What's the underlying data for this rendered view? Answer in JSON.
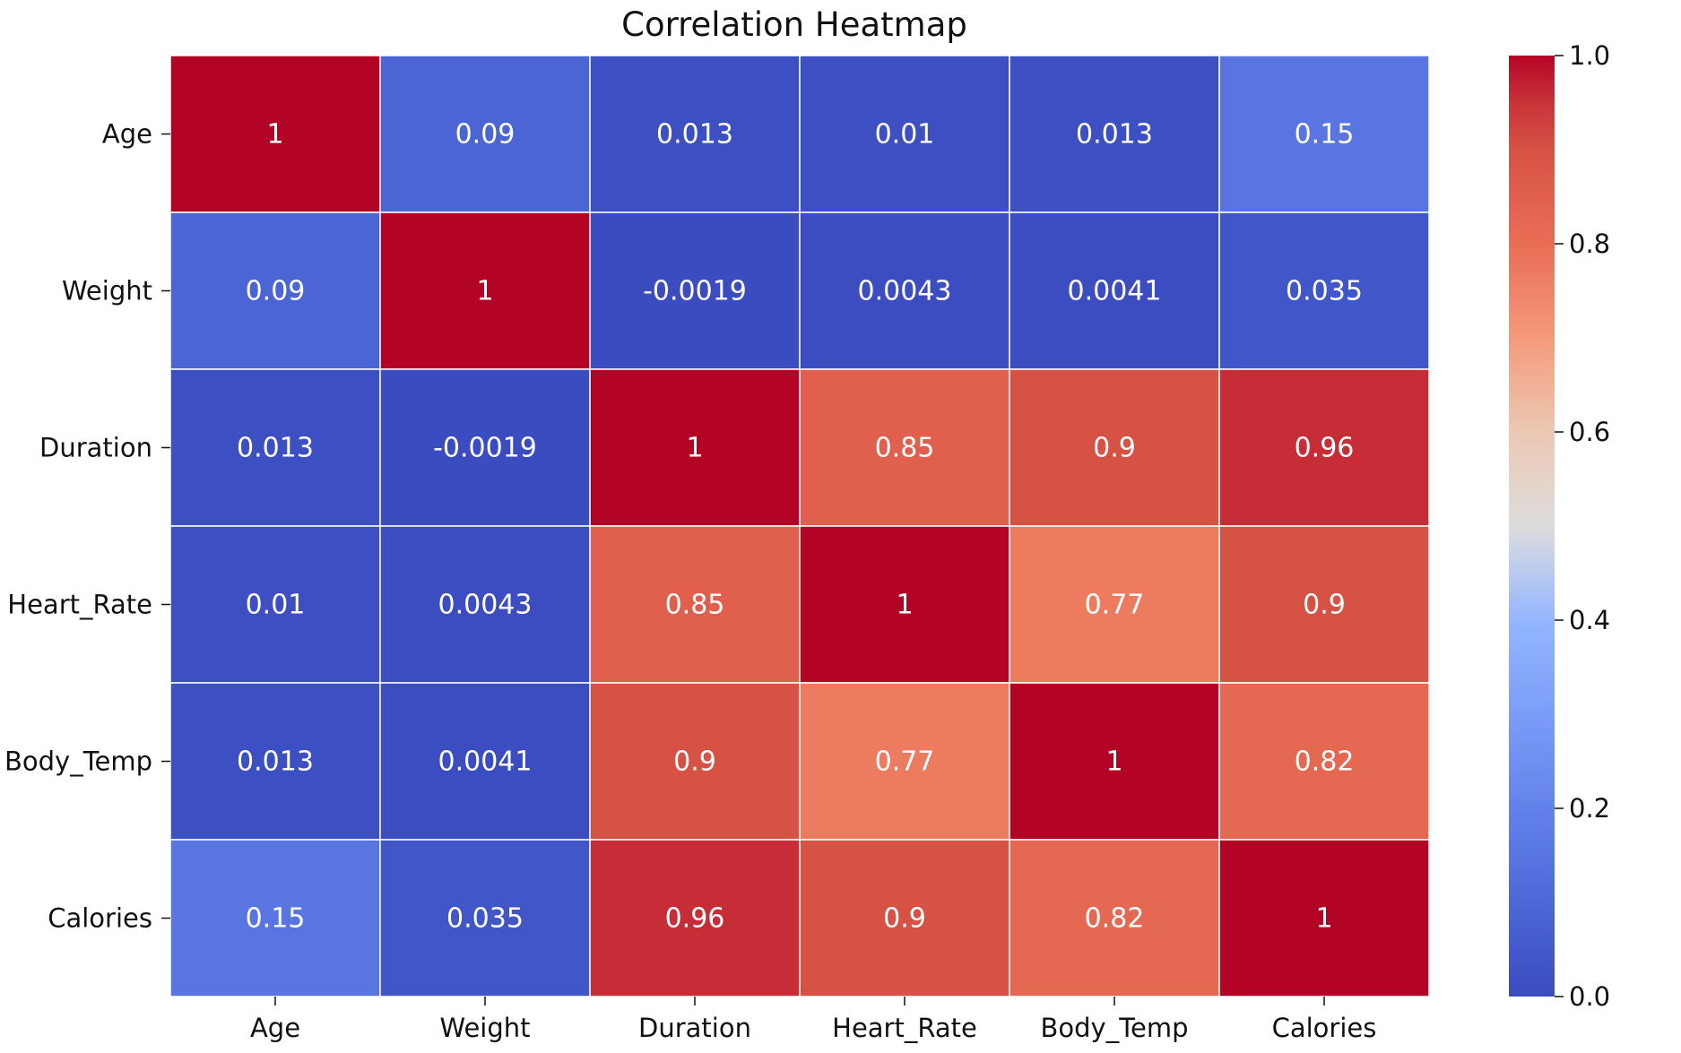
{
  "chart_data": {
    "type": "heatmap",
    "title": "Correlation Heatmap",
    "xlabel": "",
    "ylabel": "",
    "x_labels": [
      "Age",
      "Weight",
      "Duration",
      "Heart_Rate",
      "Body_Temp",
      "Calories"
    ],
    "y_labels": [
      "Age",
      "Weight",
      "Duration",
      "Heart_Rate",
      "Body_Temp",
      "Calories"
    ],
    "values": [
      [
        1,
        0.09,
        0.013,
        0.01,
        0.013,
        0.15
      ],
      [
        0.09,
        1,
        -0.0019,
        0.0043,
        0.0041,
        0.035
      ],
      [
        0.013,
        -0.0019,
        1,
        0.85,
        0.9,
        0.96
      ],
      [
        0.01,
        0.0043,
        0.85,
        1,
        0.77,
        0.9
      ],
      [
        0.013,
        0.0041,
        0.9,
        0.77,
        1,
        0.82
      ],
      [
        0.15,
        0.035,
        0.96,
        0.9,
        0.82,
        1
      ]
    ],
    "annotations": [
      [
        "1",
        "0.09",
        "0.013",
        "0.01",
        "0.013",
        "0.15"
      ],
      [
        "0.09",
        "1",
        "-0.0019",
        "0.0043",
        "0.0041",
        "0.035"
      ],
      [
        "0.013",
        "-0.0019",
        "1",
        "0.85",
        "0.9",
        "0.96"
      ],
      [
        "0.01",
        "0.0043",
        "0.85",
        "1",
        "0.77",
        "0.9"
      ],
      [
        "0.013",
        "0.0041",
        "0.9",
        "0.77",
        "1",
        "0.82"
      ],
      [
        "0.15",
        "0.035",
        "0.96",
        "0.9",
        "0.82",
        "1"
      ]
    ],
    "colormap": "coolwarm",
    "colorbar": {
      "range": [
        0.0,
        1.0
      ],
      "ticks": [
        0.0,
        0.2,
        0.4,
        0.6,
        0.8,
        1.0
      ],
      "tick_labels": [
        "0.0",
        "0.2",
        "0.4",
        "0.6",
        "0.8",
        "1.0"
      ],
      "placement": "right"
    },
    "grid": true,
    "colors": {
      "low": "#3b4cc0",
      "mid": "#dddddd",
      "high": "#b40426",
      "gridline": "#ffffff"
    }
  }
}
